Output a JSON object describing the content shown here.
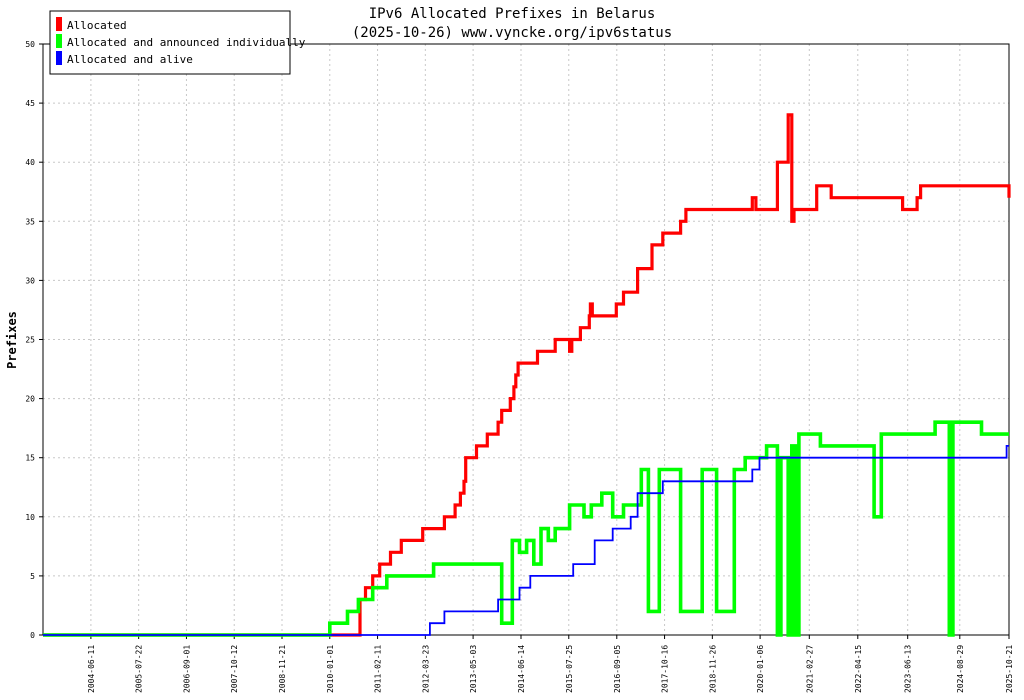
{
  "chart_data": {
    "type": "line",
    "title": "IPv6 Allocated Prefixes in Belarus",
    "subtitle": "(2025-10-26) www.vyncke.org/ipv6status",
    "ylabel": "Prefixes",
    "xlabel": "",
    "ylim": [
      0,
      50
    ],
    "yticks": [
      0,
      5,
      10,
      15,
      20,
      25,
      30,
      35,
      40,
      45,
      50
    ],
    "xlim": [
      "2003-05-01",
      "2025-10-21"
    ],
    "xticks": [
      "2004-06-11",
      "2005-07-22",
      "2006-09-01",
      "2007-10-12",
      "2008-11-21",
      "2010-01-01",
      "2011-02-11",
      "2012-03-23",
      "2013-05-03",
      "2014-06-14",
      "2015-07-25",
      "2016-09-05",
      "2017-10-16",
      "2018-11-26",
      "2020-01-06",
      "2021-02-27",
      "2022-04-15",
      "2023-06-13",
      "2024-08-29",
      "2025-10-21"
    ],
    "grid": true,
    "legend_position": "top-left",
    "series": [
      {
        "name": "Allocated",
        "color": "#ff0000",
        "points": [
          [
            "2003-05-01",
            0
          ],
          [
            "2009-12-20",
            0
          ],
          [
            "2010-09-01",
            0
          ],
          [
            "2010-09-15",
            3
          ],
          [
            "2010-11-01",
            4
          ],
          [
            "2011-01-01",
            5
          ],
          [
            "2011-03-01",
            6
          ],
          [
            "2011-06-01",
            7
          ],
          [
            "2011-09-01",
            8
          ],
          [
            "2012-03-01",
            9
          ],
          [
            "2012-09-01",
            10
          ],
          [
            "2012-12-01",
            11
          ],
          [
            "2013-01-15",
            12
          ],
          [
            "2013-02-15",
            13
          ],
          [
            "2013-03-01",
            15
          ],
          [
            "2013-06-01",
            16
          ],
          [
            "2013-09-01",
            17
          ],
          [
            "2013-12-01",
            18
          ],
          [
            "2014-01-01",
            19
          ],
          [
            "2014-03-15",
            20
          ],
          [
            "2014-04-15",
            21
          ],
          [
            "2014-05-01",
            22
          ],
          [
            "2014-05-20",
            23
          ],
          [
            "2014-11-01",
            24
          ],
          [
            "2015-04-01",
            25
          ],
          [
            "2015-07-15",
            25
          ],
          [
            "2015-08-01",
            24
          ],
          [
            "2015-08-20",
            25
          ],
          [
            "2015-11-01",
            26
          ],
          [
            "2016-01-15",
            27
          ],
          [
            "2016-01-25",
            28
          ],
          [
            "2016-02-10",
            27
          ],
          [
            "2016-09-01",
            28
          ],
          [
            "2016-11-01",
            29
          ],
          [
            "2017-03-01",
            31
          ],
          [
            "2017-07-01",
            33
          ],
          [
            "2017-10-01",
            34
          ],
          [
            "2018-03-01",
            35
          ],
          [
            "2018-04-15",
            36
          ],
          [
            "2019-11-01",
            37
          ],
          [
            "2019-12-01",
            36
          ],
          [
            "2020-06-01",
            40
          ],
          [
            "2020-09-01",
            44
          ],
          [
            "2020-10-01",
            35
          ],
          [
            "2020-10-20",
            36
          ],
          [
            "2021-05-01",
            38
          ],
          [
            "2021-09-01",
            37
          ],
          [
            "2023-05-01",
            36
          ],
          [
            "2023-09-01",
            37
          ],
          [
            "2023-10-01",
            38
          ],
          [
            "2025-09-15",
            38
          ],
          [
            "2025-10-21",
            37
          ]
        ]
      },
      {
        "name": "Allocated and announced individually",
        "color": "#00ff00",
        "points": [
          [
            "2003-05-01",
            0
          ],
          [
            "2009-12-20",
            0
          ],
          [
            "2010-01-01",
            1
          ],
          [
            "2010-06-01",
            2
          ],
          [
            "2010-09-01",
            3
          ],
          [
            "2011-01-01",
            4
          ],
          [
            "2011-05-01",
            5
          ],
          [
            "2012-06-01",
            6
          ],
          [
            "2014-01-01",
            1
          ],
          [
            "2014-04-01",
            8
          ],
          [
            "2014-06-01",
            7
          ],
          [
            "2014-08-01",
            8
          ],
          [
            "2014-10-01",
            6
          ],
          [
            "2014-12-01",
            9
          ],
          [
            "2015-02-01",
            8
          ],
          [
            "2015-04-01",
            9
          ],
          [
            "2015-08-01",
            11
          ],
          [
            "2015-12-01",
            10
          ],
          [
            "2016-02-01",
            11
          ],
          [
            "2016-05-01",
            12
          ],
          [
            "2016-08-01",
            10
          ],
          [
            "2016-11-01",
            11
          ],
          [
            "2017-04-01",
            14
          ],
          [
            "2017-06-01",
            2
          ],
          [
            "2017-09-01",
            14
          ],
          [
            "2018-03-01",
            2
          ],
          [
            "2018-09-01",
            14
          ],
          [
            "2019-01-01",
            2
          ],
          [
            "2019-06-01",
            14
          ],
          [
            "2019-09-01",
            15
          ],
          [
            "2020-03-01",
            16
          ],
          [
            "2020-06-01",
            0
          ],
          [
            "2020-07-01",
            15
          ],
          [
            "2020-09-01",
            0
          ],
          [
            "2020-10-01",
            16
          ],
          [
            "2020-11-01",
            0
          ],
          [
            "2020-12-01",
            17
          ],
          [
            "2021-06-01",
            16
          ],
          [
            "2022-09-01",
            10
          ],
          [
            "2022-11-01",
            17
          ],
          [
            "2024-02-01",
            18
          ],
          [
            "2024-06-01",
            0
          ],
          [
            "2024-07-01",
            18
          ],
          [
            "2025-03-01",
            17
          ],
          [
            "2025-10-21",
            17
          ]
        ]
      },
      {
        "name": "Allocated and alive",
        "color": "#0000ff",
        "points": [
          [
            "2003-05-01",
            0
          ],
          [
            "2012-03-01",
            0
          ],
          [
            "2012-05-01",
            1
          ],
          [
            "2012-09-01",
            2
          ],
          [
            "2013-12-01",
            3
          ],
          [
            "2014-06-01",
            4
          ],
          [
            "2014-09-01",
            5
          ],
          [
            "2015-09-01",
            6
          ],
          [
            "2016-03-01",
            8
          ],
          [
            "2016-08-01",
            9
          ],
          [
            "2017-01-01",
            10
          ],
          [
            "2017-03-01",
            12
          ],
          [
            "2017-07-01",
            12
          ],
          [
            "2017-10-01",
            13
          ],
          [
            "2019-11-01",
            14
          ],
          [
            "2020-01-01",
            15
          ],
          [
            "2025-09-01",
            15
          ],
          [
            "2025-10-01",
            16
          ],
          [
            "2025-10-21",
            16
          ]
        ]
      }
    ]
  }
}
